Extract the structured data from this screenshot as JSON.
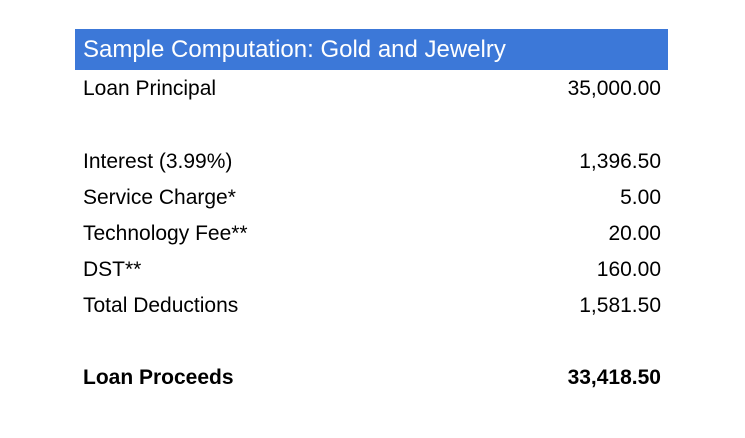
{
  "table": {
    "title": "Sample Computation: Gold and Jewelry",
    "header_color": "#3c78d8",
    "rows": [
      {
        "label": "Loan Principal",
        "value": "35,000.00"
      },
      {
        "label": "Interest (3.99%)",
        "value": "1,396.50"
      },
      {
        "label": "Service Charge*",
        "value": "5.00"
      },
      {
        "label": "Technology Fee**",
        "value": "20.00"
      },
      {
        "label": "DST**",
        "value": "160.00"
      },
      {
        "label": "Total Deductions",
        "value": "1,581.50"
      },
      {
        "label": "Loan Proceeds",
        "value": "33,418.50"
      }
    ]
  }
}
